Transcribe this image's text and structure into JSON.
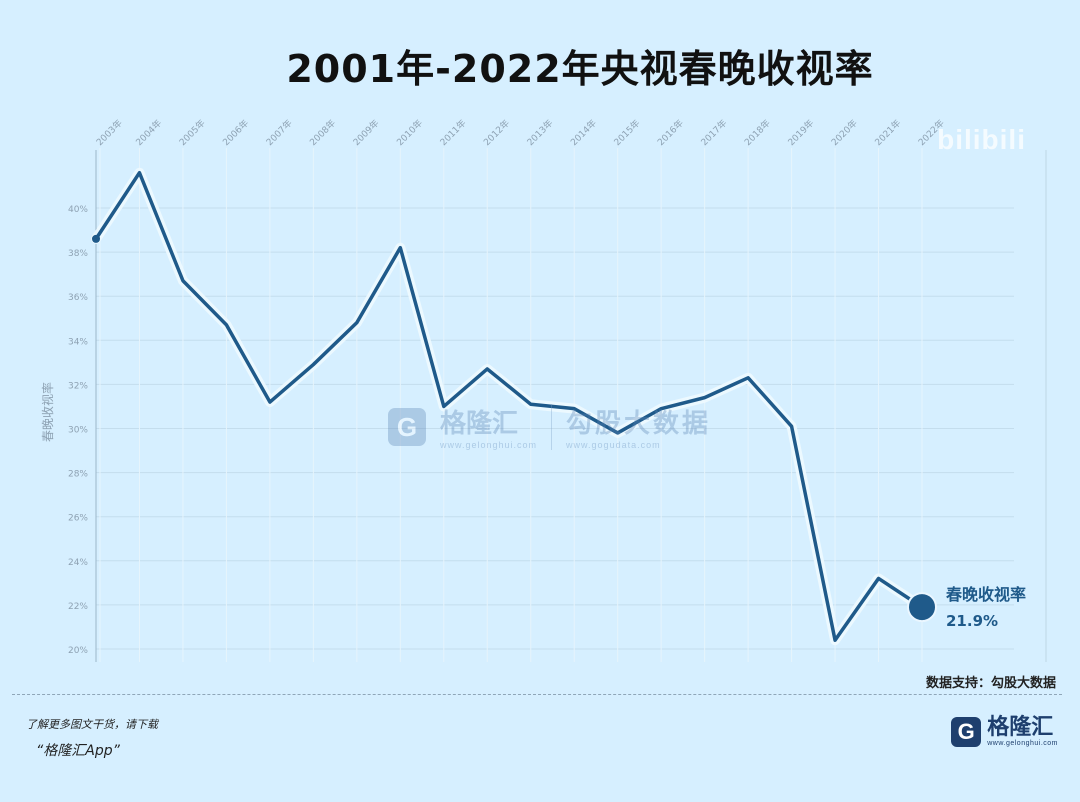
{
  "title": "2001年-2022年央视春晚收视率",
  "watermark": {
    "logo_glyph": "G",
    "brand": "格隆汇",
    "brand_url": "www.gelonghui.com",
    "data_brand": "勾股大数据",
    "data_url": "www.gogudata.com",
    "bili": "bilibili"
  },
  "colors": {
    "line": "#1f5a8a",
    "glow": "#eef9ff",
    "background": "#d6efff",
    "grid": "#c4dded"
  },
  "chart_data": {
    "type": "line",
    "title": "2001年-2022年央视春晚收视率",
    "ylabel": "春晚收视率",
    "xlabel": "",
    "x": [
      "2003年",
      "2004年",
      "2005年",
      "2006年",
      "2007年",
      "2008年",
      "2009年",
      "2010年",
      "2011年",
      "2012年",
      "2013年",
      "2014年",
      "2015年",
      "2016年",
      "2017年",
      "2018年",
      "2019年",
      "2020年",
      "2021年",
      "2022年"
    ],
    "series": [
      {
        "name": "春晚收视率",
        "values": [
          38.6,
          41.6,
          36.7,
          34.7,
          31.2,
          32.9,
          34.8,
          38.2,
          31.0,
          32.7,
          31.1,
          30.9,
          29.8,
          30.9,
          31.4,
          32.3,
          30.1,
          20.4,
          23.2,
          21.9
        ]
      }
    ],
    "yticks": [
      "20%",
      "22%",
      "24%",
      "26%",
      "28%",
      "30%",
      "32%",
      "34%",
      "36%",
      "38%",
      "40%"
    ],
    "ylim": [
      19.6,
      42.6
    ],
    "grid": true,
    "end_label": {
      "name": "春晚收视率",
      "value": "21.9%"
    }
  },
  "source_note": "数据支持：勾股大数据",
  "footer": {
    "note": "了解更多图文干货，请下载",
    "app": "“格隆汇App”",
    "logo_glyph": "G",
    "logo_name": "格隆汇",
    "logo_url": "www.gelonghui.com"
  }
}
